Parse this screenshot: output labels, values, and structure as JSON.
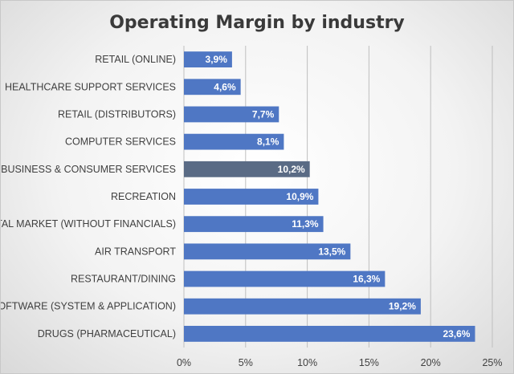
{
  "chart_data": {
    "type": "bar",
    "orientation": "horizontal",
    "title": "Operating Margin by industry",
    "categories": [
      "RETAIL (ONLINE)",
      "HEALTHCARE SUPPORT SERVICES",
      "RETAIL (DISTRIBUTORS)",
      "COMPUTER SERVICES",
      "BUSINESS & CONSUMER SERVICES",
      "RECREATION",
      "TOTAL MARKET (WITHOUT FINANCIALS)",
      "AIR TRANSPORT",
      "RESTAURANT/DINING",
      "SOFTWARE (SYSTEM & APPLICATION)",
      "DRUGS (PHARMACEUTICAL)"
    ],
    "values": [
      3.9,
      4.6,
      7.7,
      8.1,
      10.2,
      10.9,
      11.3,
      13.5,
      16.3,
      19.2,
      23.6
    ],
    "data_labels": [
      "3,9%",
      "4,6%",
      "7,7%",
      "8,1%",
      "10,2%",
      "10,9%",
      "11,3%",
      "13,5%",
      "16,3%",
      "19,2%",
      "23,6%"
    ],
    "highlighted_category": "BUSINESS & CONSUMER SERVICES",
    "xlim": [
      0,
      25
    ],
    "x_ticks": [
      0,
      5,
      10,
      15,
      20,
      25
    ],
    "x_tick_labels": [
      "0%",
      "5%",
      "10%",
      "15%",
      "20%",
      "25%"
    ],
    "xlabel": "",
    "ylabel": "",
    "grid": "vertical",
    "legend": "none",
    "colors": {
      "bar": "#4f77c4",
      "bar_highlight": "#5a6b85",
      "background": "#f2f2f2"
    }
  }
}
